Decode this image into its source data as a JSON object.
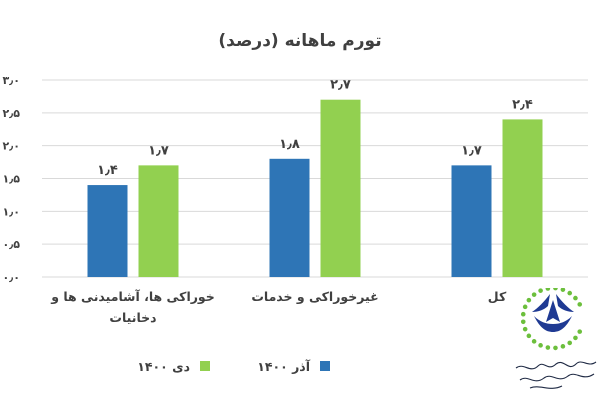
{
  "chart_data": {
    "type": "bar",
    "title": "تورم ماهانه (درصد)",
    "categories": [
      "خوراکی ها، آشامیدنی ها و دخانیات",
      "غیرخوراکی و خدمات",
      "کل"
    ],
    "category_label_lines": [
      [
        "خوراکی ها، آشامیدنی ها و",
        "دخانیات"
      ],
      [
        "غیرخوراکی و خدمات"
      ],
      [
        "کل"
      ]
    ],
    "series": [
      {
        "name": "آذر ۱۴۰۰",
        "color": "#2e75b6",
        "values": [
          1.4,
          1.8,
          1.7
        ],
        "labels": [
          "۱٫۴",
          "۱٫۸",
          "۱٫۷"
        ]
      },
      {
        "name": "دی ۱۴۰۰",
        "color": "#92d050",
        "values": [
          1.7,
          2.7,
          2.4
        ],
        "labels": [
          "۱٫۷",
          "۲٫۷",
          "۲٫۴"
        ]
      }
    ],
    "ylim": [
      0,
      3
    ],
    "y_ticks": [
      0,
      0.5,
      1,
      1.5,
      2,
      2.5,
      3
    ],
    "y_tick_labels": [
      "۰٫۰",
      "۰٫۵",
      "۱٫۰",
      "۱٫۵",
      "۲٫۰",
      "۲٫۵",
      "۳٫۰"
    ],
    "grid": true,
    "legend_position": "bottom",
    "xlabel": "",
    "ylabel": ""
  },
  "logo": {
    "name": "association-logo-icon",
    "colors": [
      "#1f3a93",
      "#2e7d32",
      "#92d050"
    ]
  }
}
